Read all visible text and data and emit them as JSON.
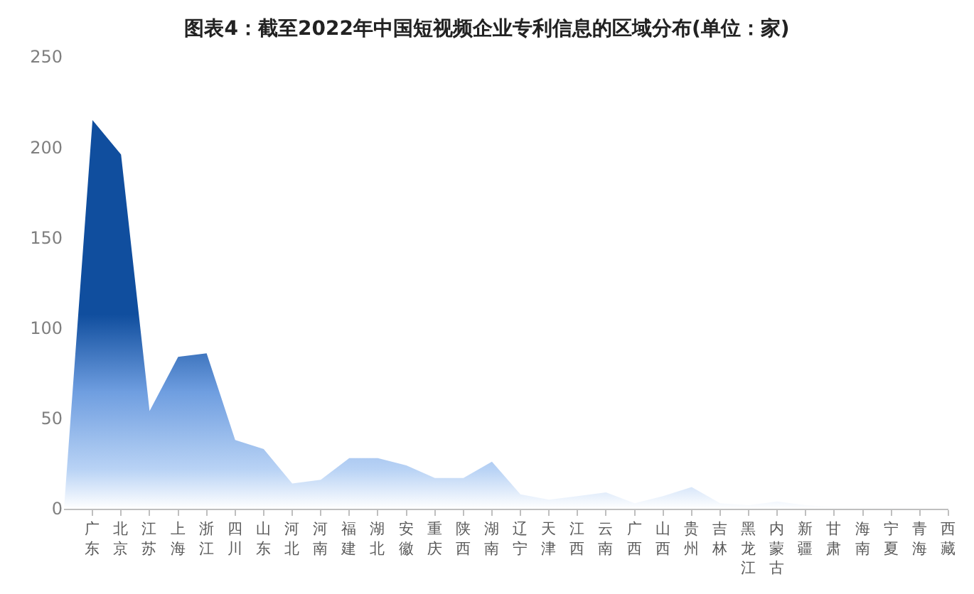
{
  "chart_data": {
    "type": "area",
    "title": "图表4：截至2022年中国短视频企业专利信息的区域分布(单位：家)",
    "categories": [
      null,
      "广东",
      "北京",
      "江苏",
      "上海",
      "浙江",
      "四川",
      "山东",
      "河北",
      "河南",
      "福建",
      "湖北",
      "安徽",
      "重庆",
      "陕西",
      "湖南",
      "辽宁",
      "天津",
      "江西",
      "云南",
      "广西",
      "山西",
      "贵州",
      "吉林",
      "黑龙江",
      "内蒙古",
      "新疆",
      "甘肃",
      "海南",
      "宁夏",
      "青海",
      "西藏"
    ],
    "series": [
      {
        "color": "#104e9e",
        "values": [
          0,
          215,
          196,
          54,
          84,
          86,
          38,
          33,
          14,
          16,
          28,
          28,
          24,
          17,
          17,
          26,
          8,
          5,
          7,
          9,
          3,
          7,
          12,
          3,
          2,
          4,
          2,
          1,
          1,
          1,
          0,
          0
        ]
      }
    ],
    "ylim": [
      0,
      250
    ],
    "yticks": [
      0,
      50,
      100,
      150,
      200,
      250
    ]
  }
}
